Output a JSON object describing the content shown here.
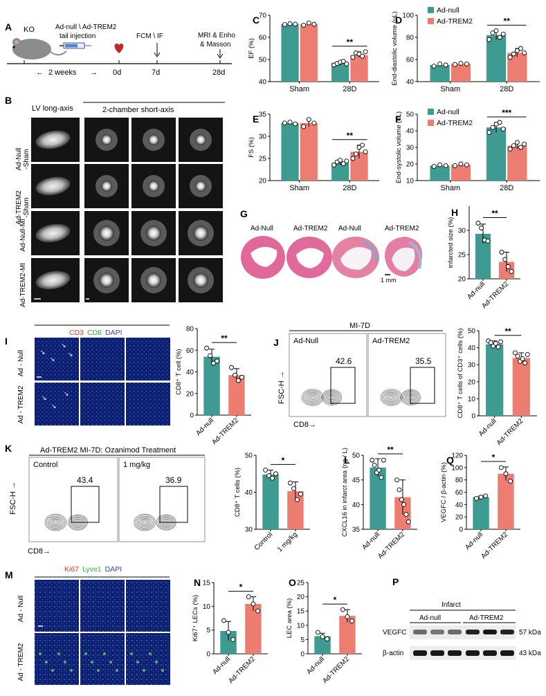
{
  "colors": {
    "null": "#3d9b91",
    "trem2": "#ec7d70",
    "blue": "#1b3a8f",
    "pink": "#e27fa7",
    "ink": "#000000"
  },
  "panelA": {
    "letter": "A",
    "ko": "KO",
    "injection": [
      "Ad-null \\ Ad-TREM2",
      "tail injection"
    ],
    "weeks": "2 weeks",
    "t0": "0d",
    "t7": "7d",
    "t28": "28d",
    "fcm": "FCM \\ IF",
    "mri": [
      "MRI & Enho",
      "& Masson"
    ]
  },
  "panelB": {
    "letter": "B",
    "header_long": "LV long-axis",
    "header_short": "2-chamber short-axis",
    "rows": [
      "Ad-Null\n-Sham",
      "Ad-TREM2\n-Sham",
      "Ad-Null-MI",
      "Ad-TREM2-MI"
    ]
  },
  "panelG": {
    "letter": "G",
    "labels": [
      "Ad-Null",
      "Ad-TREM2",
      "Ad-Null",
      "Ad-TREM2"
    ],
    "scale": "1 mm"
  },
  "panelI": {
    "letter": "I",
    "stain": [
      "CD3",
      "CD8",
      "DAPI"
    ],
    "rows": [
      "Ad - Null",
      "Ad - TREM2"
    ]
  },
  "panelJ": {
    "letter": "J",
    "title": "MI-7D",
    "labels": [
      "Ad-Null",
      "Ad-TREM2"
    ],
    "values": [
      "42.6",
      "35.5"
    ],
    "ylab": "FSC-H →",
    "xlab": "CD8→"
  },
  "panelK": {
    "letter": "K",
    "title": "Ad-TREM2 MI-7D: Ozanimod Treatment",
    "labels": [
      "Control",
      "1 mg/kg"
    ],
    "values": [
      "43.4",
      "36.9"
    ],
    "ylab": "FSC-H →",
    "xlab": "CD8→"
  },
  "panelM": {
    "letter": "M",
    "stain": [
      "Ki67",
      "Lyve1",
      "DAPI"
    ],
    "rows": [
      "Ad - Null",
      "Ad - TREM2"
    ]
  },
  "panelP": {
    "letter": "P",
    "header": "Infarct",
    "groups": [
      "Ad-null",
      "Ad-TREM2"
    ],
    "bands": [
      {
        "name": "VEGFC",
        "kda": "57 kDa"
      },
      {
        "name": "β-actin",
        "kda": "43 kDa"
      }
    ]
  },
  "chart_data": [
    {
      "id": "C",
      "type": "bar",
      "ylabel": "EF (%)",
      "ylim": [
        40,
        70
      ],
      "yticks": [
        40,
        50,
        60,
        70
      ],
      "categories": [
        "Sham",
        "28D"
      ],
      "series": [
        {
          "name": "Ad-null",
          "values": [
            66,
            48.5
          ],
          "points": [
            [
              65.8,
              66.2,
              66.0
            ],
            [
              47.5,
              48.2,
              48.8,
              49.2,
              48.0
            ]
          ]
        },
        {
          "name": "Ad-TREM2",
          "values": [
            66,
            52
          ],
          "points": [
            [
              65.5,
              66.5,
              65.9
            ],
            [
              51,
              53,
              52.5,
              51.5,
              53.5
            ]
          ]
        }
      ],
      "sig": "**"
    },
    {
      "id": "D",
      "type": "bar",
      "ylabel": "End-diastolic volume (uL)",
      "ylim": [
        40,
        100
      ],
      "yticks": [
        40,
        60,
        80,
        100
      ],
      "categories": [
        "Sham",
        "28D"
      ],
      "legend": [
        "Ad-null",
        "Ad-TREM2"
      ],
      "series": [
        {
          "name": "Ad-null",
          "values": [
            55,
            82
          ],
          "points": [
            [
              54,
              56,
              55
            ],
            [
              78,
              84,
              86,
              80,
              83
            ]
          ]
        },
        {
          "name": "Ad-TREM2",
          "values": [
            56,
            66
          ],
          "points": [
            [
              55.5,
              56.5,
              56
            ],
            [
              62,
              65,
              68,
              70,
              66
            ]
          ]
        }
      ],
      "sig": "**"
    },
    {
      "id": "E",
      "type": "bar",
      "ylabel": "FS (%)",
      "ylim": [
        20,
        35
      ],
      "yticks": [
        20,
        25,
        30,
        35
      ],
      "categories": [
        "Sham",
        "28D"
      ],
      "series": [
        {
          "name": "Ad-null",
          "values": [
            33,
            24
          ],
          "points": [
            [
              33,
              33.2,
              32.8
            ],
            [
              23.5,
              24.2,
              24.6,
              23.8,
              24.4
            ]
          ]
        },
        {
          "name": "Ad-TREM2",
          "values": [
            33,
            26.5
          ],
          "points": [
            [
              32.2,
              33.8,
              33
            ],
            [
              25,
              26,
              27.5,
              28,
              26.5
            ]
          ]
        }
      ],
      "sig": "**"
    },
    {
      "id": "F",
      "type": "bar",
      "ylabel": "End-systolic volume (uL)",
      "ylim": [
        10,
        50
      ],
      "yticks": [
        10,
        20,
        30,
        40,
        50
      ],
      "categories": [
        "Sham",
        "28D"
      ],
      "legend": [
        "Ad-null",
        "Ad-TREM2"
      ],
      "series": [
        {
          "name": "Ad-null",
          "values": [
            19,
            42
          ],
          "points": [
            [
              18.5,
              19.5,
              19
            ],
            [
              39,
              42,
              44,
              45,
              41
            ]
          ]
        },
        {
          "name": "Ad-TREM2",
          "values": [
            19.5,
            31
          ],
          "points": [
            [
              19,
              20,
              19.5
            ],
            [
              29,
              31,
              33,
              30,
              32
            ]
          ]
        }
      ],
      "sig": "***"
    },
    {
      "id": "H",
      "type": "bar",
      "ylabel": "infarcted size (%)",
      "ylim": [
        20,
        35
      ],
      "yticks": [
        20,
        25,
        30
      ],
      "categories": [
        "Ad-null",
        "Ad-TREM2"
      ],
      "values": [
        29.3,
        23.5
      ],
      "points": [
        [
          31.5,
          30.5,
          28,
          27.8
        ],
        [
          25.5,
          24,
          22.5,
          21.5
        ]
      ],
      "err": [
        2,
        2
      ],
      "sig": "**"
    },
    {
      "id": "I2",
      "type": "bar",
      "ylabel": "CD8⁺ T cell (%)",
      "ylim": [
        0,
        80
      ],
      "yticks": [
        0,
        20,
        40,
        60,
        80
      ],
      "categories": [
        "Ad-null",
        "Ad-TREM2"
      ],
      "values": [
        54,
        37
      ],
      "points": [
        [
          62,
          55,
          48,
          50
        ],
        [
          44,
          37,
          32,
          35
        ]
      ],
      "err": [
        7,
        6
      ],
      "sig": "**"
    },
    {
      "id": "J2",
      "type": "bar",
      "ylabel": "CD8⁺ T cells of CD3⁺ cells (%)",
      "ylim": [
        0,
        50
      ],
      "yticks": [
        0,
        10,
        20,
        30,
        40,
        50
      ],
      "categories": [
        "Ad-null",
        "Ad-TREM2"
      ],
      "values": [
        42,
        34
      ],
      "points": [
        [
          44,
          43,
          41,
          42.5,
          40.5,
          43.5
        ],
        [
          37,
          35,
          32,
          33.5,
          31,
          36
        ]
      ],
      "err": [
        2,
        3
      ],
      "sig": "**"
    },
    {
      "id": "K2",
      "type": "bar",
      "ylabel": "CD8⁺ T cells (%)",
      "ylim": [
        30,
        50
      ],
      "yticks": [
        30,
        40,
        50
      ],
      "categories": [
        "Control",
        "1 mg/kg"
      ],
      "values": [
        44.8,
        40.3
      ],
      "points": [
        [
          46,
          44.5,
          43.8,
          45
        ],
        [
          42.5,
          41,
          38,
          39.5
        ]
      ],
      "err": [
        1.2,
        2.5
      ],
      "sig": "*"
    },
    {
      "id": "L",
      "type": "bar",
      "ylabel": "CXCL16 in infarct area (ng / L)",
      "ylim": [
        35,
        50
      ],
      "yticks": [
        35,
        40,
        45,
        50
      ],
      "categories": [
        "Ad-null",
        "Ad-TREM2"
      ],
      "values": [
        47.5,
        41.5
      ],
      "points": [
        [
          49,
          48,
          46.5,
          47,
          45.5,
          49
        ],
        [
          45,
          43,
          41,
          40,
          38,
          36.5
        ]
      ],
      "err": [
        1.8,
        3.5
      ],
      "sig": "**"
    },
    {
      "id": "Q",
      "type": "bar",
      "ylabel": "VEGFC / β-actin (%)",
      "ylim": [
        0,
        120
      ],
      "yticks": [
        0,
        20,
        40,
        60,
        80,
        100,
        120
      ],
      "categories": [
        "Ad-null",
        "Ad-TREM2"
      ],
      "values": [
        52,
        90
      ],
      "points": [
        [
          50,
          52,
          54
        ],
        [
          100,
          90,
          78
        ]
      ],
      "err": [
        2,
        11
      ],
      "sig": "*"
    },
    {
      "id": "N",
      "type": "bar",
      "ylabel": "Ki67⁺ LECs (%)",
      "ylim": [
        0,
        15
      ],
      "yticks": [
        0,
        5,
        10,
        15
      ],
      "categories": [
        "Ad-null",
        "Ad-TREM2"
      ],
      "values": [
        4.8,
        10.5
      ],
      "points": [
        [
          7,
          4.5,
          3
        ],
        [
          12,
          10.5,
          9
        ]
      ],
      "err": [
        2,
        1.5
      ],
      "sig": "*"
    },
    {
      "id": "O",
      "type": "bar",
      "ylabel": "LEC area (%)",
      "ylim": [
        0,
        25
      ],
      "yticks": [
        0,
        5,
        10,
        15,
        20,
        25
      ],
      "categories": [
        "Ad-null",
        "Ad-TREM2"
      ],
      "values": [
        6.2,
        13.3
      ],
      "points": [
        [
          7.5,
          6,
          5.2
        ],
        [
          15.5,
          13,
          11.5
        ]
      ],
      "err": [
        1,
        2.2
      ],
      "sig": "*"
    }
  ]
}
